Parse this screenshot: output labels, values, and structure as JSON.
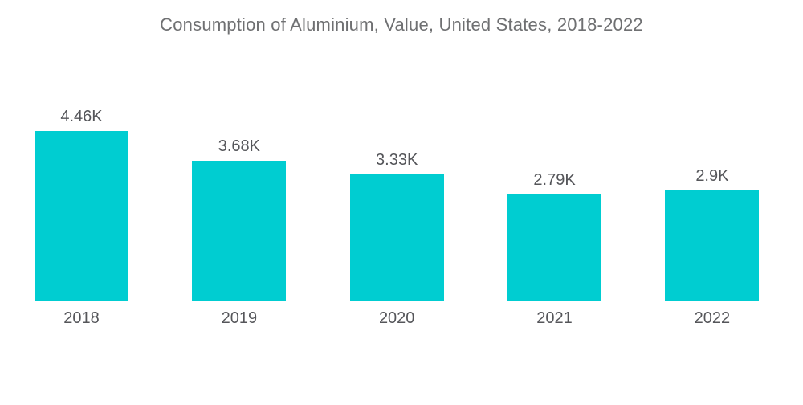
{
  "chart_data": {
    "type": "bar",
    "title": "Consumption of Aluminium, Value, United States, 2018-2022",
    "categories": [
      "2018",
      "2019",
      "2020",
      "2021",
      "2022"
    ],
    "values": [
      4.46,
      3.68,
      3.33,
      2.79,
      2.9
    ],
    "value_labels": [
      "4.46K",
      "3.68K",
      "3.33K",
      "2.79K",
      "2.9K"
    ],
    "xlabel": "",
    "ylabel": "",
    "ylim": [
      0,
      4.8
    ],
    "grid": false,
    "legend": "none",
    "bar_color": "#00cdd1",
    "label_color": "#55565a",
    "title_color": "#6f7072"
  },
  "layout_note": "white background, no axes, value labels above bars, year labels below bars"
}
